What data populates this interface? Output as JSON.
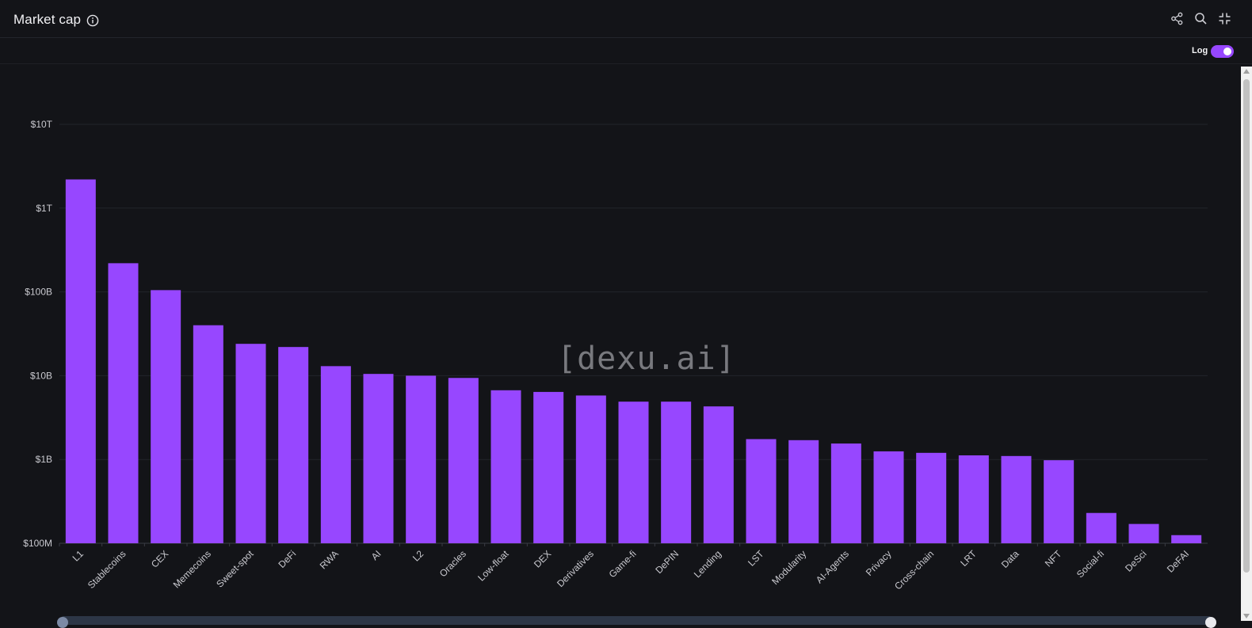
{
  "header": {
    "title": "Market cap",
    "icons": [
      "info-icon",
      "share-icon",
      "search-icon",
      "collapse-icon"
    ]
  },
  "toolbar": {
    "log_label": "Log",
    "log_enabled": true
  },
  "watermark": "[dexu.ai]",
  "colors": {
    "bar": "#9747ff",
    "background": "#131418",
    "grid": "#22242a"
  },
  "chart_data": {
    "type": "bar",
    "title": "Market cap",
    "yscale": "log",
    "ylim": [
      100000000,
      10000000000000
    ],
    "yticks": [
      {
        "value": 100000000,
        "label": "$100M"
      },
      {
        "value": 1000000000,
        "label": "$1B"
      },
      {
        "value": 10000000000,
        "label": "$10B"
      },
      {
        "value": 100000000000,
        "label": "$100B"
      },
      {
        "value": 1000000000000,
        "label": "$1T"
      },
      {
        "value": 10000000000000,
        "label": "$10T"
      }
    ],
    "grid": true,
    "categories": [
      "L1",
      "Stablecoins",
      "CEX",
      "Memecoins",
      "Sweet-spot",
      "DeFi",
      "RWA",
      "AI",
      "L2",
      "Oracles",
      "Low-float",
      "DEX",
      "Derivatives",
      "Game-fi",
      "DePIN",
      "Lending",
      "LST",
      "Modularity",
      "AI-Agents",
      "Privacy",
      "Cross-chain",
      "LRT",
      "Data",
      "NFT",
      "Social-fi",
      "DeSci",
      "DeFAI"
    ],
    "values": [
      2200000000000,
      220000000000,
      105000000000,
      40000000000,
      24000000000,
      22000000000,
      13000000000,
      10500000000,
      10000000000,
      9400000000,
      6700000000,
      6400000000,
      5800000000,
      4900000000,
      4900000000,
      4300000000,
      1750000000,
      1700000000,
      1550000000,
      1250000000,
      1200000000,
      1120000000,
      1100000000,
      980000000,
      230000000,
      170000000,
      125000000
    ]
  }
}
